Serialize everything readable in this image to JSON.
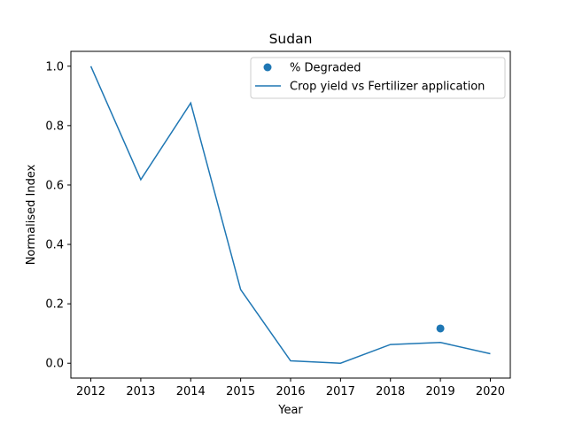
{
  "colors": {
    "series": "#1f77b4",
    "axis": "#000000",
    "background": "#ffffff"
  },
  "chart_data": {
    "type": "line",
    "title": "Sudan",
    "xlabel": "Year",
    "ylabel": "Normalised Index",
    "xlim": [
      2011.6,
      2020.4
    ],
    "ylim": [
      -0.05,
      1.05
    ],
    "x_ticks": [
      2012,
      2013,
      2014,
      2015,
      2016,
      2017,
      2018,
      2019,
      2020
    ],
    "x_tick_labels": [
      "2012",
      "2013",
      "2014",
      "2015",
      "2016",
      "2017",
      "2018",
      "2019",
      "2020"
    ],
    "y_ticks": [
      0.0,
      0.2,
      0.4,
      0.6,
      0.8,
      1.0
    ],
    "y_tick_labels": [
      "0.0",
      "0.2",
      "0.4",
      "0.6",
      "0.8",
      "1.0"
    ],
    "legend_position": "top-right",
    "series": [
      {
        "name": "% Degraded",
        "kind": "scatter",
        "x": [
          2019
        ],
        "y": [
          0.117
        ]
      },
      {
        "name": "Crop yield vs Fertilizer application",
        "kind": "line",
        "x": [
          2012,
          2013,
          2014,
          2015,
          2016,
          2017,
          2018,
          2019,
          2020
        ],
        "y": [
          1.0,
          0.618,
          0.876,
          0.248,
          0.008,
          0.0,
          0.063,
          0.07,
          0.032
        ]
      }
    ]
  }
}
